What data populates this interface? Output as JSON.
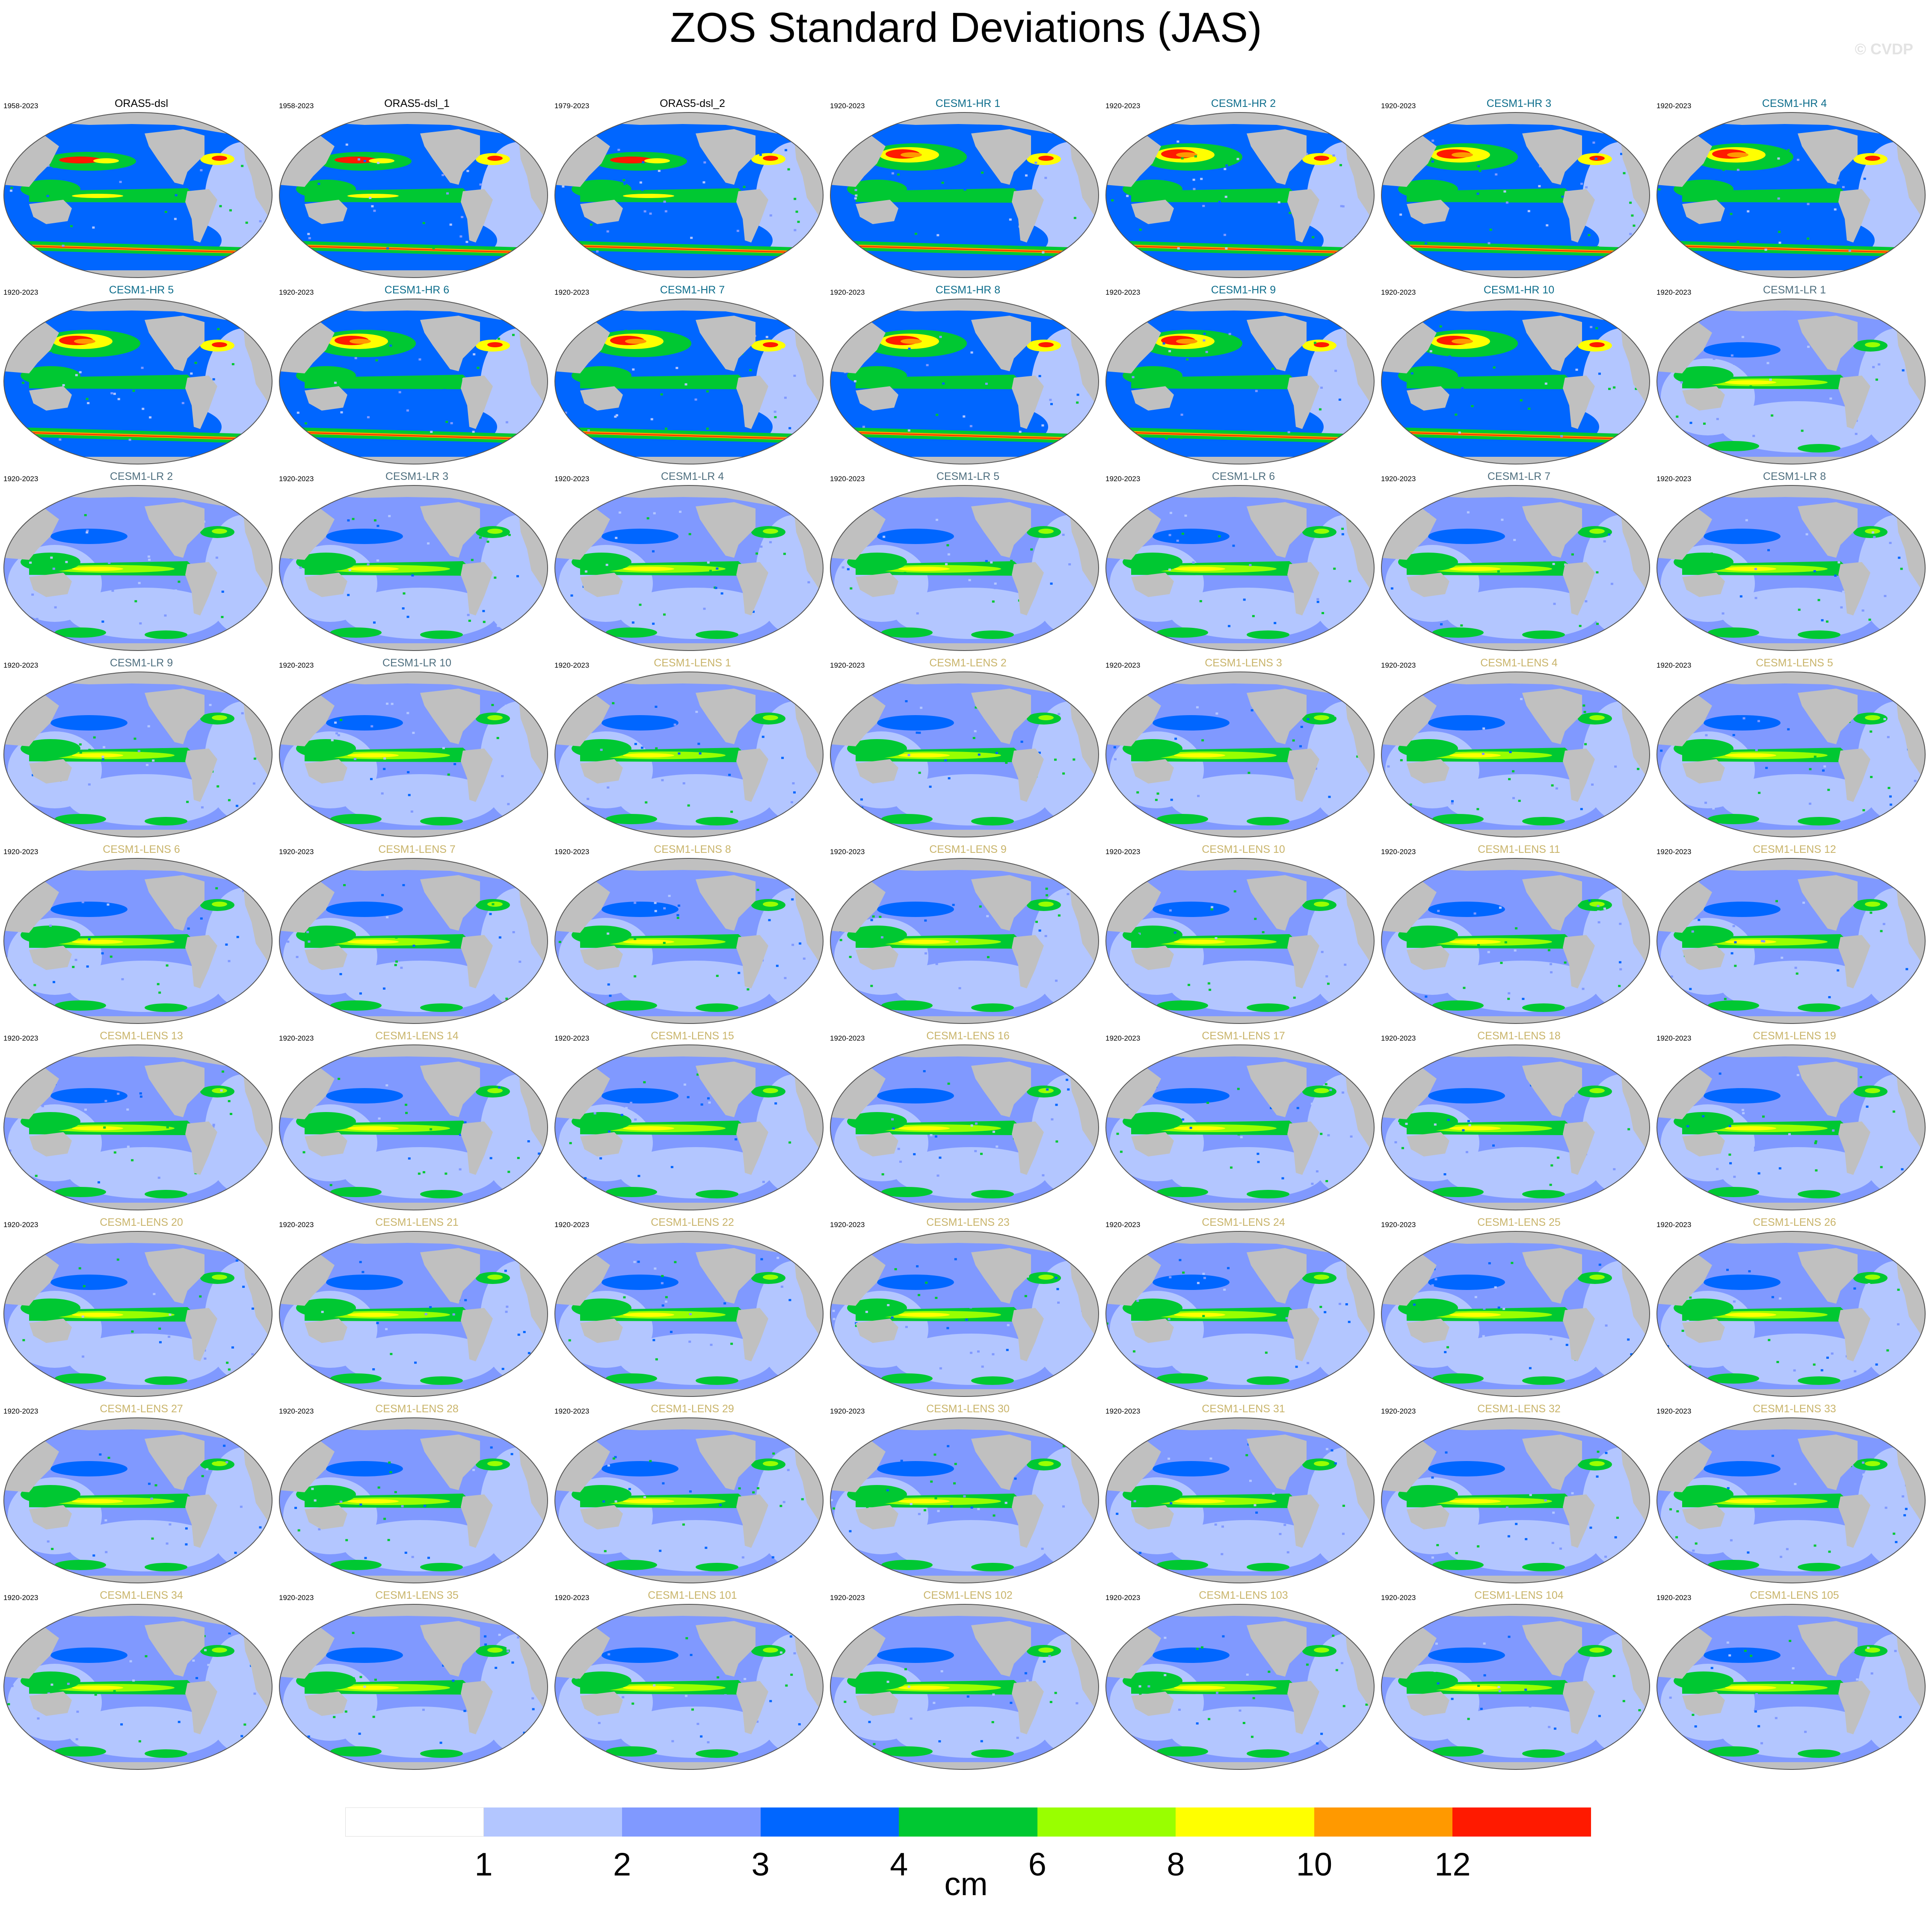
{
  "title": "ZOS Standard Deviations (JAS)",
  "watermark": "© CVDP",
  "colors": {
    "land": "#c0c0c0",
    "outline": "#555555",
    "label_obs": "#000000",
    "label_hr": "#0e6e8c",
    "label_lr": "#4f6f7f",
    "label_lens": "#c9b46a"
  },
  "panels": [
    {
      "label": "ORAS5-dsl",
      "period": "1958-2023",
      "group": "obs"
    },
    {
      "label": "ORAS5-dsl_1",
      "period": "1958-2023",
      "group": "obs"
    },
    {
      "label": "ORAS5-dsl_2",
      "period": "1979-2023",
      "group": "obs"
    },
    {
      "label": "CESM1-HR 1",
      "period": "1920-2023",
      "group": "hr"
    },
    {
      "label": "CESM1-HR 2",
      "period": "1920-2023",
      "group": "hr"
    },
    {
      "label": "CESM1-HR 3",
      "period": "1920-2023",
      "group": "hr"
    },
    {
      "label": "CESM1-HR 4",
      "period": "1920-2023",
      "group": "hr"
    },
    {
      "label": "CESM1-HR 5",
      "period": "1920-2023",
      "group": "hr"
    },
    {
      "label": "CESM1-HR 6",
      "period": "1920-2023",
      "group": "hr"
    },
    {
      "label": "CESM1-HR 7",
      "period": "1920-2023",
      "group": "hr"
    },
    {
      "label": "CESM1-HR 8",
      "period": "1920-2023",
      "group": "hr"
    },
    {
      "label": "CESM1-HR 9",
      "period": "1920-2023",
      "group": "hr"
    },
    {
      "label": "CESM1-HR 10",
      "period": "1920-2023",
      "group": "hr"
    },
    {
      "label": "CESM1-LR 1",
      "period": "1920-2023",
      "group": "lr"
    },
    {
      "label": "CESM1-LR 2",
      "period": "1920-2023",
      "group": "lr"
    },
    {
      "label": "CESM1-LR 3",
      "period": "1920-2023",
      "group": "lr"
    },
    {
      "label": "CESM1-LR 4",
      "period": "1920-2023",
      "group": "lr"
    },
    {
      "label": "CESM1-LR 5",
      "period": "1920-2023",
      "group": "lr"
    },
    {
      "label": "CESM1-LR 6",
      "period": "1920-2023",
      "group": "lr"
    },
    {
      "label": "CESM1-LR 7",
      "period": "1920-2023",
      "group": "lr"
    },
    {
      "label": "CESM1-LR 8",
      "period": "1920-2023",
      "group": "lr"
    },
    {
      "label": "CESM1-LR 9",
      "period": "1920-2023",
      "group": "lr"
    },
    {
      "label": "CESM1-LR 10",
      "period": "1920-2023",
      "group": "lr"
    },
    {
      "label": "CESM1-LENS 1",
      "period": "1920-2023",
      "group": "lens"
    },
    {
      "label": "CESM1-LENS 2",
      "period": "1920-2023",
      "group": "lens"
    },
    {
      "label": "CESM1-LENS 3",
      "period": "1920-2023",
      "group": "lens"
    },
    {
      "label": "CESM1-LENS 4",
      "period": "1920-2023",
      "group": "lens"
    },
    {
      "label": "CESM1-LENS 5",
      "period": "1920-2023",
      "group": "lens"
    },
    {
      "label": "CESM1-LENS 6",
      "period": "1920-2023",
      "group": "lens"
    },
    {
      "label": "CESM1-LENS 7",
      "period": "1920-2023",
      "group": "lens"
    },
    {
      "label": "CESM1-LENS 8",
      "period": "1920-2023",
      "group": "lens"
    },
    {
      "label": "CESM1-LENS 9",
      "period": "1920-2023",
      "group": "lens"
    },
    {
      "label": "CESM1-LENS 10",
      "period": "1920-2023",
      "group": "lens"
    },
    {
      "label": "CESM1-LENS 11",
      "period": "1920-2023",
      "group": "lens"
    },
    {
      "label": "CESM1-LENS 12",
      "period": "1920-2023",
      "group": "lens"
    },
    {
      "label": "CESM1-LENS 13",
      "period": "1920-2023",
      "group": "lens"
    },
    {
      "label": "CESM1-LENS 14",
      "period": "1920-2023",
      "group": "lens"
    },
    {
      "label": "CESM1-LENS 15",
      "period": "1920-2023",
      "group": "lens"
    },
    {
      "label": "CESM1-LENS 16",
      "period": "1920-2023",
      "group": "lens"
    },
    {
      "label": "CESM1-LENS 17",
      "period": "1920-2023",
      "group": "lens"
    },
    {
      "label": "CESM1-LENS 18",
      "period": "1920-2023",
      "group": "lens"
    },
    {
      "label": "CESM1-LENS 19",
      "period": "1920-2023",
      "group": "lens"
    },
    {
      "label": "CESM1-LENS 20",
      "period": "1920-2023",
      "group": "lens"
    },
    {
      "label": "CESM1-LENS 21",
      "period": "1920-2023",
      "group": "lens"
    },
    {
      "label": "CESM1-LENS 22",
      "period": "1920-2023",
      "group": "lens"
    },
    {
      "label": "CESM1-LENS 23",
      "period": "1920-2023",
      "group": "lens"
    },
    {
      "label": "CESM1-LENS 24",
      "period": "1920-2023",
      "group": "lens"
    },
    {
      "label": "CESM1-LENS 25",
      "period": "1920-2023",
      "group": "lens"
    },
    {
      "label": "CESM1-LENS 26",
      "period": "1920-2023",
      "group": "lens"
    },
    {
      "label": "CESM1-LENS 27",
      "period": "1920-2023",
      "group": "lens"
    },
    {
      "label": "CESM1-LENS 28",
      "period": "1920-2023",
      "group": "lens"
    },
    {
      "label": "CESM1-LENS 29",
      "period": "1920-2023",
      "group": "lens"
    },
    {
      "label": "CESM1-LENS 30",
      "period": "1920-2023",
      "group": "lens"
    },
    {
      "label": "CESM1-LENS 31",
      "period": "1920-2023",
      "group": "lens"
    },
    {
      "label": "CESM1-LENS 32",
      "period": "1920-2023",
      "group": "lens"
    },
    {
      "label": "CESM1-LENS 33",
      "period": "1920-2023",
      "group": "lens"
    },
    {
      "label": "CESM1-LENS 34",
      "period": "1920-2023",
      "group": "lens"
    },
    {
      "label": "CESM1-LENS 35",
      "period": "1920-2023",
      "group": "lens"
    },
    {
      "label": "CESM1-LENS 101",
      "period": "1920-2023",
      "group": "lens"
    },
    {
      "label": "CESM1-LENS 102",
      "period": "1920-2023",
      "group": "lens"
    },
    {
      "label": "CESM1-LENS 103",
      "period": "1920-2023",
      "group": "lens"
    },
    {
      "label": "CESM1-LENS 104",
      "period": "1920-2023",
      "group": "lens"
    },
    {
      "label": "CESM1-LENS 105",
      "period": "1920-2023",
      "group": "lens"
    }
  ],
  "colorbar": {
    "colors": [
      "#ffffff",
      "#b3c6ff",
      "#8099ff",
      "#0066ff",
      "#00c832",
      "#99ff00",
      "#ffff00",
      "#ff9900",
      "#ff1a00"
    ],
    "tick_labels": [
      "1",
      "2",
      "3",
      "4",
      "6",
      "8",
      "10",
      "12"
    ],
    "units": "cm"
  }
}
